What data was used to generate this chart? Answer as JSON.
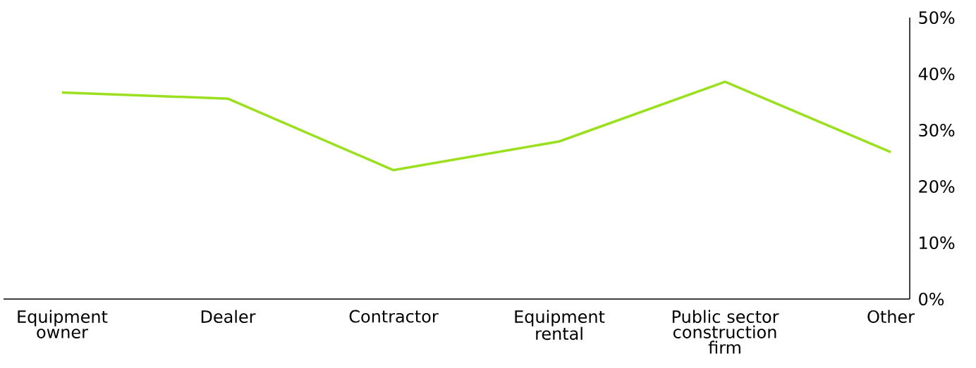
{
  "chart_data": {
    "type": "line",
    "categories": [
      "Equipment owner",
      "Dealer",
      "Contractor",
      "Equipment rental",
      "Public sector construction firm",
      "Other"
    ],
    "series": [
      {
        "color": "#9be01e",
        "values": [
          36.7,
          35.6,
          22.9,
          28,
          38.6,
          26.1
        ]
      }
    ],
    "ylim": [
      0,
      50
    ],
    "yticks": [
      {
        "value": 0,
        "label": "0%"
      },
      {
        "value": 10,
        "label": "10%"
      },
      {
        "value": 20,
        "label": "20%"
      },
      {
        "value": 30,
        "label": "30%"
      },
      {
        "value": 40,
        "label": "40%"
      },
      {
        "value": 50,
        "label": "50%"
      }
    ],
    "grid": false,
    "marker": "none",
    "line_style": "solid"
  }
}
